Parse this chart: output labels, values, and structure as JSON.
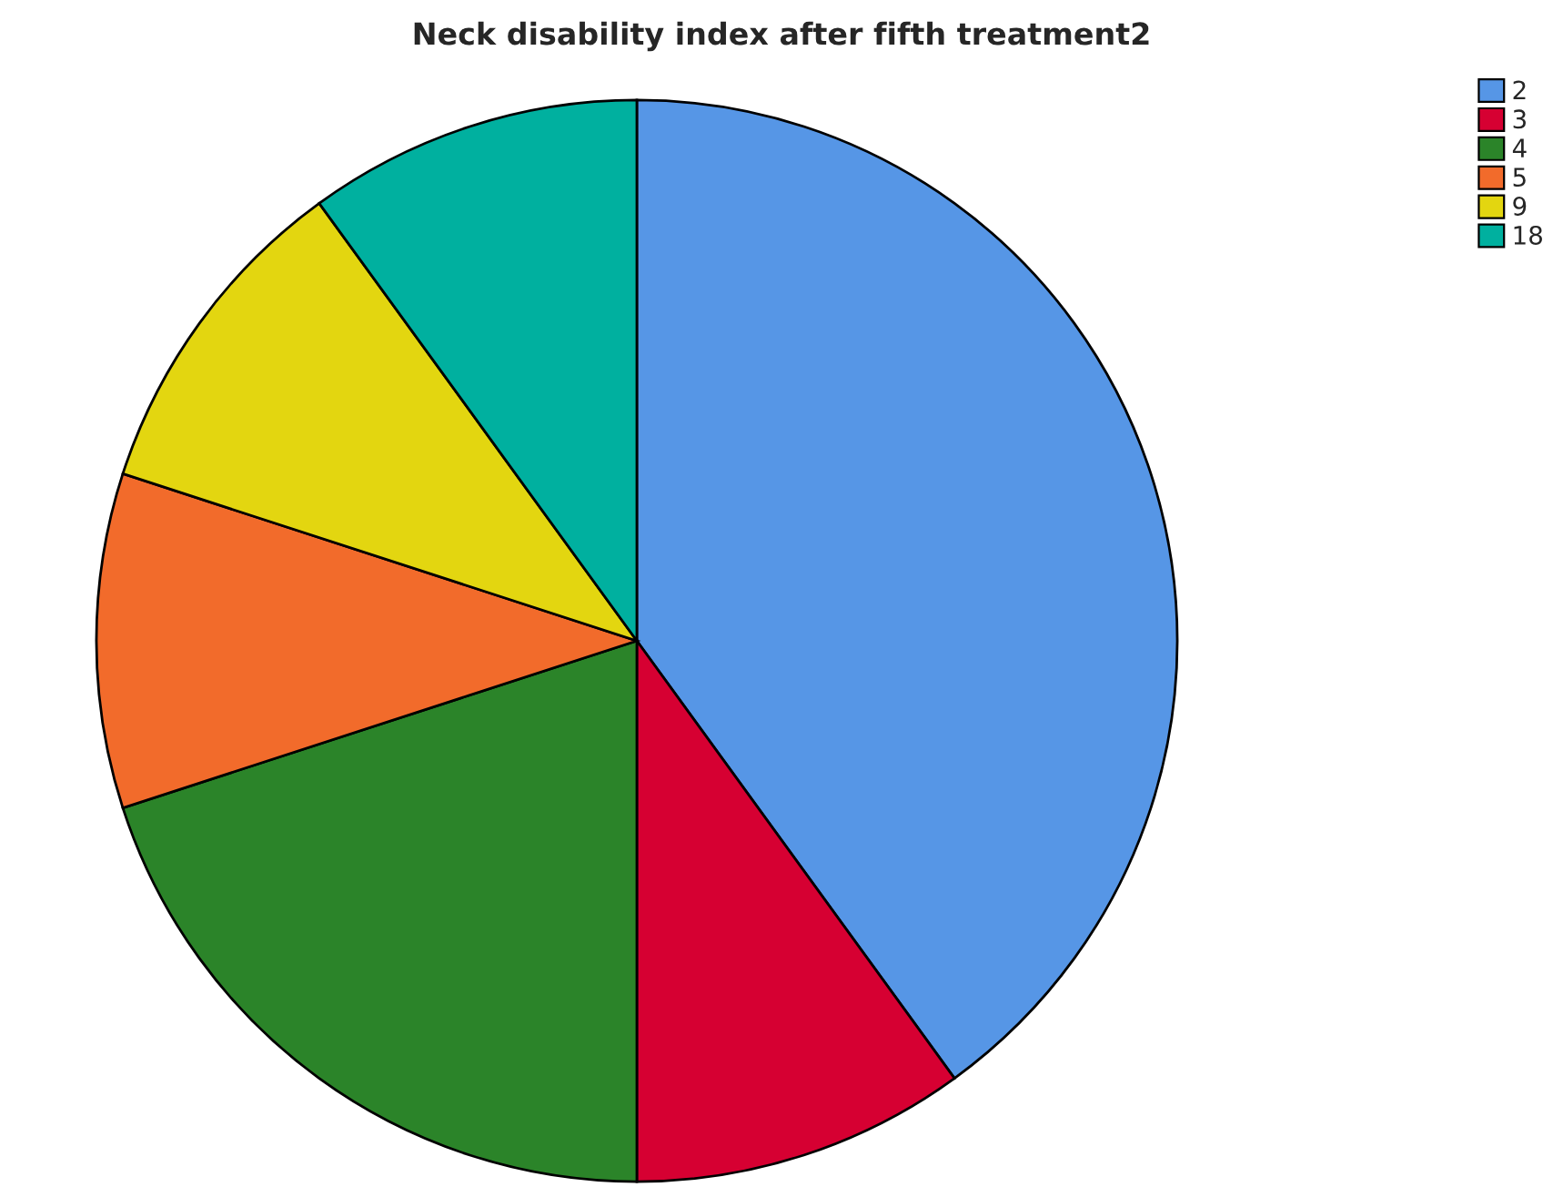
{
  "chart_data": {
    "type": "pie",
    "title": "Neck disability index after fifth treatment2",
    "categories": [
      "2",
      "3",
      "4",
      "5",
      "9",
      "18"
    ],
    "values": [
      40,
      10,
      20,
      10,
      10,
      10
    ],
    "colors": [
      "#5696e6",
      "#d60032",
      "#2b8429",
      "#f26b2b",
      "#e3d610",
      "#00b09f"
    ],
    "legend": "top right"
  }
}
